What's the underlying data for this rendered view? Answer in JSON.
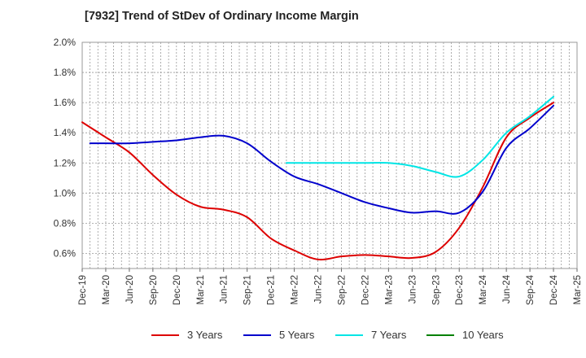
{
  "chart_data": {
    "type": "line",
    "title": "[7932]  Trend of StDev of Ordinary Income Margin",
    "xlabel": "",
    "ylabel": "",
    "ylim": [
      0.5,
      2.0
    ],
    "y_ticks": [
      "0.6%",
      "0.8%",
      "1.0%",
      "1.2%",
      "1.4%",
      "1.6%",
      "1.8%",
      "2.0%"
    ],
    "x_ticks": [
      "Dec-19",
      "Mar-20",
      "Jun-20",
      "Sep-20",
      "Dec-20",
      "Mar-21",
      "Jun-21",
      "Sep-21",
      "Dec-21",
      "Mar-22",
      "Jun-22",
      "Sep-22",
      "Dec-22",
      "Mar-23",
      "Jun-23",
      "Sep-23",
      "Dec-23",
      "Mar-24",
      "Jun-24",
      "Sep-24",
      "Dec-24",
      "Mar-25"
    ],
    "grid": true,
    "legend_position": "bottom",
    "series": [
      {
        "name": "3 Years",
        "color": "#dd0000",
        "points": [
          [
            "Dec-19",
            1.47
          ],
          [
            "Mar-20",
            1.37
          ],
          [
            "Jun-20",
            1.27
          ],
          [
            "Sep-20",
            1.12
          ],
          [
            "Dec-20",
            0.99
          ],
          [
            "Mar-21",
            0.91
          ],
          [
            "Jun-21",
            0.89
          ],
          [
            "Sep-21",
            0.84
          ],
          [
            "Dec-21",
            0.7
          ],
          [
            "Mar-22",
            0.62
          ],
          [
            "Jun-22",
            0.56
          ],
          [
            "Sep-22",
            0.58
          ],
          [
            "Dec-22",
            0.59
          ],
          [
            "Mar-23",
            0.58
          ],
          [
            "Jun-23",
            0.57
          ],
          [
            "Sep-23",
            0.61
          ],
          [
            "Dec-23",
            0.77
          ],
          [
            "Mar-24",
            1.04
          ],
          [
            "Jun-24",
            1.37
          ],
          [
            "Sep-24",
            1.5
          ],
          [
            "Dec-24",
            1.6
          ]
        ]
      },
      {
        "name": "5 Years",
        "color": "#0000cc",
        "points": [
          [
            "Jan-20",
            1.33
          ],
          [
            "Mar-20",
            1.33
          ],
          [
            "Jun-20",
            1.33
          ],
          [
            "Sep-20",
            1.34
          ],
          [
            "Dec-20",
            1.35
          ],
          [
            "Mar-21",
            1.37
          ],
          [
            "Jun-21",
            1.38
          ],
          [
            "Sep-21",
            1.33
          ],
          [
            "Dec-21",
            1.21
          ],
          [
            "Mar-22",
            1.11
          ],
          [
            "Jun-22",
            1.06
          ],
          [
            "Sep-22",
            1.0
          ],
          [
            "Dec-22",
            0.94
          ],
          [
            "Mar-23",
            0.9
          ],
          [
            "Jun-23",
            0.87
          ],
          [
            "Sep-23",
            0.88
          ],
          [
            "Dec-23",
            0.87
          ],
          [
            "Mar-24",
            1.01
          ],
          [
            "Jun-24",
            1.3
          ],
          [
            "Sep-24",
            1.43
          ],
          [
            "Dec-24",
            1.58
          ]
        ]
      },
      {
        "name": "7 Years",
        "color": "#00e5e5",
        "points": [
          [
            "Feb-22",
            1.2
          ],
          [
            "Jun-22",
            1.2
          ],
          [
            "Sep-22",
            1.2
          ],
          [
            "Dec-22",
            1.2
          ],
          [
            "Mar-23",
            1.2
          ],
          [
            "Jun-23",
            1.18
          ],
          [
            "Sep-23",
            1.14
          ],
          [
            "Dec-23",
            1.11
          ],
          [
            "Mar-24",
            1.22
          ],
          [
            "Jun-24",
            1.4
          ],
          [
            "Sep-24",
            1.51
          ],
          [
            "Dec-24",
            1.64
          ]
        ]
      },
      {
        "name": "10 Years",
        "color": "#008000",
        "points": []
      }
    ]
  }
}
